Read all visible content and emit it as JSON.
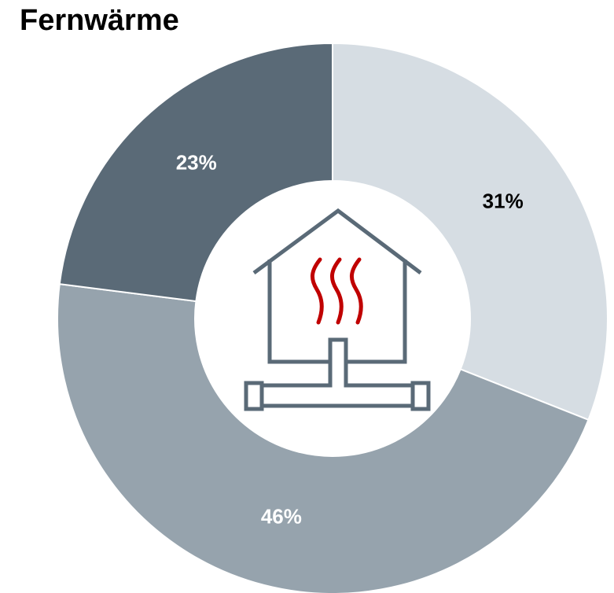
{
  "chart_data": {
    "type": "donut",
    "title": "Fernwärme",
    "categories": [
      null,
      null,
      null
    ],
    "values": [
      31,
      46,
      23
    ],
    "value_labels": [
      "31%",
      "46%",
      "23%"
    ],
    "colors": [
      "#d6dde3",
      "#96a3ad",
      "#5a6a77"
    ],
    "label_colors": [
      "#000000",
      "#ffffff",
      "#ffffff"
    ]
  }
}
